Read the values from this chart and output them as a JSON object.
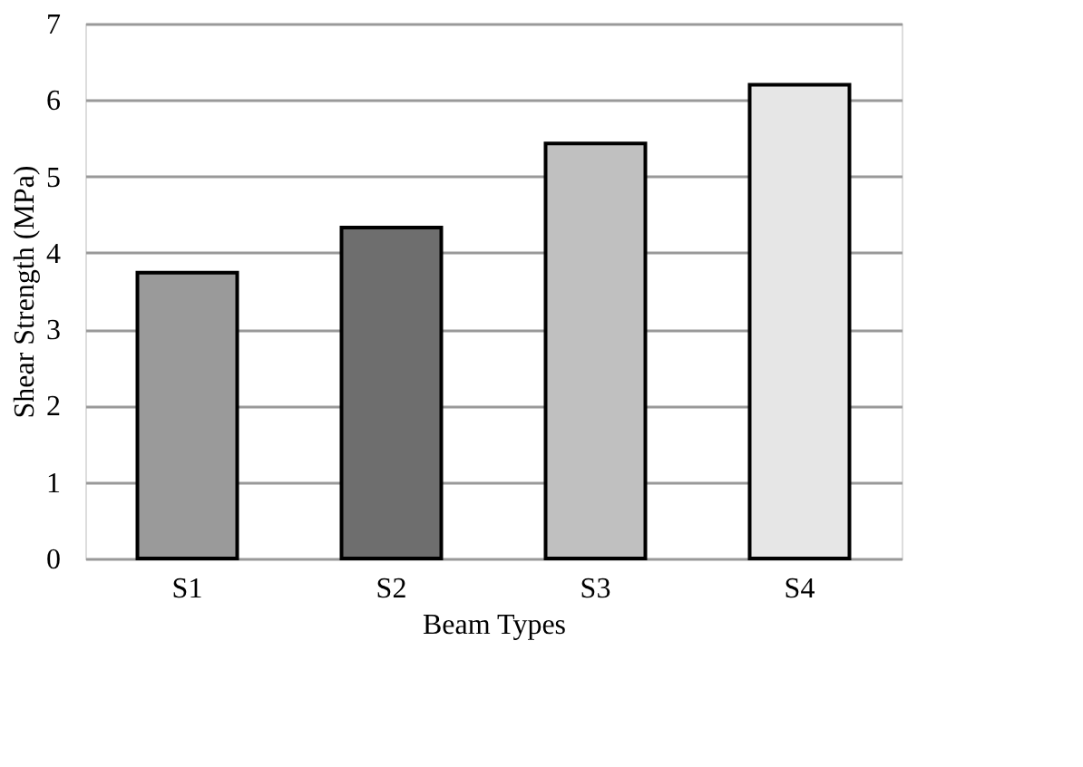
{
  "chart_data": {
    "type": "bar",
    "xlabel": "Beam Types",
    "ylabel": "Shear Strength (MPa)",
    "categories": [
      "S1",
      "S2",
      "S3",
      "S4"
    ],
    "values": [
      3.74,
      4.33,
      5.43,
      6.2
    ],
    "colors": [
      "#9a9a9a",
      "#6e6e6e",
      "#c0c0c0",
      "#e6e6e6"
    ],
    "ylim": [
      0,
      7
    ],
    "yticks": [
      0,
      1,
      2,
      3,
      4,
      5,
      6,
      7
    ],
    "grid": "y",
    "legend": false
  }
}
